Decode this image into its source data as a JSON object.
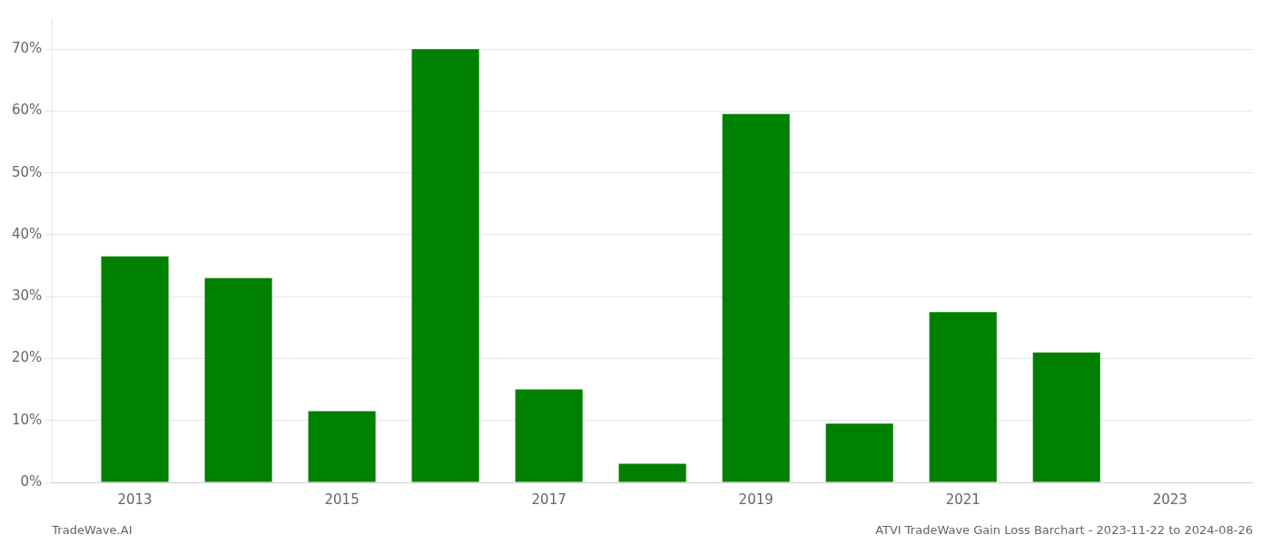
{
  "chart_data": {
    "type": "bar",
    "x": [
      2013,
      2014,
      2015,
      2016,
      2017,
      2018,
      2019,
      2020,
      2021,
      2022
    ],
    "values": [
      0.365,
      0.33,
      0.115,
      0.7,
      0.15,
      0.03,
      0.595,
      0.095,
      0.275,
      0.21
    ],
    "color": "#008000",
    "xlim": [
      2012.2,
      2023.8
    ],
    "xticks": [
      2013,
      2015,
      2017,
      2019,
      2021,
      2023
    ],
    "ylim": [
      0,
      0.75
    ],
    "yticks": [
      {
        "value": 0.0,
        "label": "0%"
      },
      {
        "value": 0.1,
        "label": "10%"
      },
      {
        "value": 0.2,
        "label": "20%"
      },
      {
        "value": 0.3,
        "label": "30%"
      },
      {
        "value": 0.4,
        "label": "40%"
      },
      {
        "value": 0.5,
        "label": "50%"
      },
      {
        "value": 0.6,
        "label": "60%"
      },
      {
        "value": 0.7,
        "label": "70%"
      }
    ],
    "grid": true,
    "annotations": [
      "TradeWave.AI",
      "ATVI TradeWave Gain Loss Barchart - 2023-11-22 to 2024-08-26"
    ]
  }
}
